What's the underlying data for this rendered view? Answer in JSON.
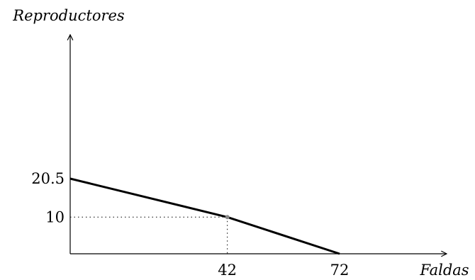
{
  "chart_data": {
    "type": "line",
    "xlabel": "Faldas",
    "ylabel": "Reproductores",
    "xlim": [
      0,
      100
    ],
    "ylim": [
      0,
      30
    ],
    "grid": false,
    "series": [
      {
        "x": [
          0,
          42,
          72
        ],
        "y": [
          20.5,
          10,
          0
        ]
      }
    ],
    "guides": {
      "x": 42,
      "y": 10
    },
    "x_ticks": [
      {
        "value": 42,
        "label": "42"
      },
      {
        "value": 72,
        "label": "72"
      }
    ],
    "y_ticks": [
      {
        "value": 20.5,
        "label": "20.5"
      },
      {
        "value": 10,
        "label": "10"
      }
    ]
  }
}
